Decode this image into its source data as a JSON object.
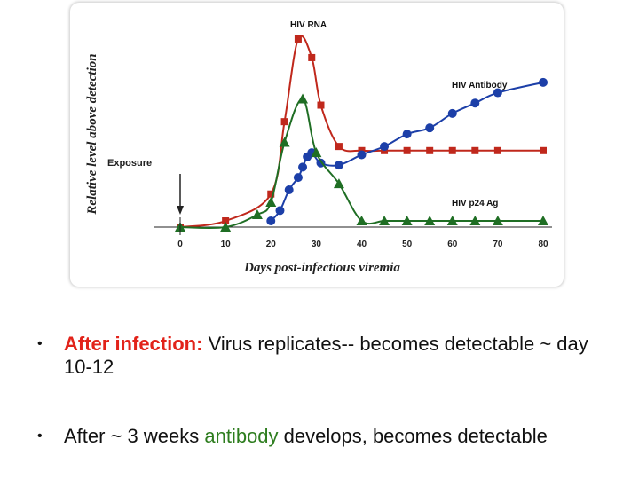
{
  "colors": {
    "rna": "#c0281c",
    "antibody": "#1c3fa8",
    "p24": "#1f6e24",
    "highlight_red": "#e2231a",
    "highlight_green": "#2e7d1f"
  },
  "chart_data": {
    "type": "line",
    "title": "",
    "xlabel": "Days post-infectious viremia",
    "ylabel": "Relative level above detection",
    "xlim": [
      0,
      80
    ],
    "x_ticks": [
      0,
      10,
      20,
      30,
      40,
      50,
      60,
      70,
      80
    ],
    "ylim": [
      0,
      100
    ],
    "exposure_label": "Exposure",
    "exposure_x": 0,
    "series": [
      {
        "name": "HIV RNA",
        "marker": "square",
        "color": "#c0281c",
        "x": [
          0,
          10,
          20,
          23,
          26,
          29,
          31,
          35,
          40,
          45,
          50,
          55,
          60,
          65,
          70,
          80
        ],
        "y": [
          0,
          3,
          16,
          51,
          91,
          82,
          59,
          39,
          37,
          37,
          37,
          37,
          37,
          37,
          37,
          37
        ]
      },
      {
        "name": "HIV Antibody",
        "marker": "circle",
        "color": "#1c3fa8",
        "x": [
          20,
          22,
          24,
          26,
          27,
          28,
          29,
          31,
          35,
          40,
          45,
          50,
          55,
          60,
          65,
          70,
          80
        ],
        "y": [
          3,
          8,
          18,
          24,
          29,
          34,
          36,
          31,
          30,
          35,
          39,
          45,
          48,
          55,
          60,
          65,
          70
        ]
      },
      {
        "name": "HIV p24 Ag",
        "marker": "triangle",
        "color": "#1f6e24",
        "x": [
          0,
          10,
          17,
          20,
          23,
          27,
          30,
          35,
          40,
          45,
          50,
          55,
          60,
          65,
          70,
          80
        ],
        "y": [
          0,
          0,
          6,
          12,
          41,
          62,
          36,
          21,
          3,
          3,
          3,
          3,
          3,
          3,
          3,
          3
        ]
      }
    ]
  },
  "bullets": [
    {
      "lead": "After infection:",
      "text": " Virus replicates-- becomes detectable  ~ day 10-12"
    },
    {
      "before": "After  ~ 3 weeks ",
      "highlight": "antibody",
      "after": " develops, becomes detectable"
    }
  ]
}
